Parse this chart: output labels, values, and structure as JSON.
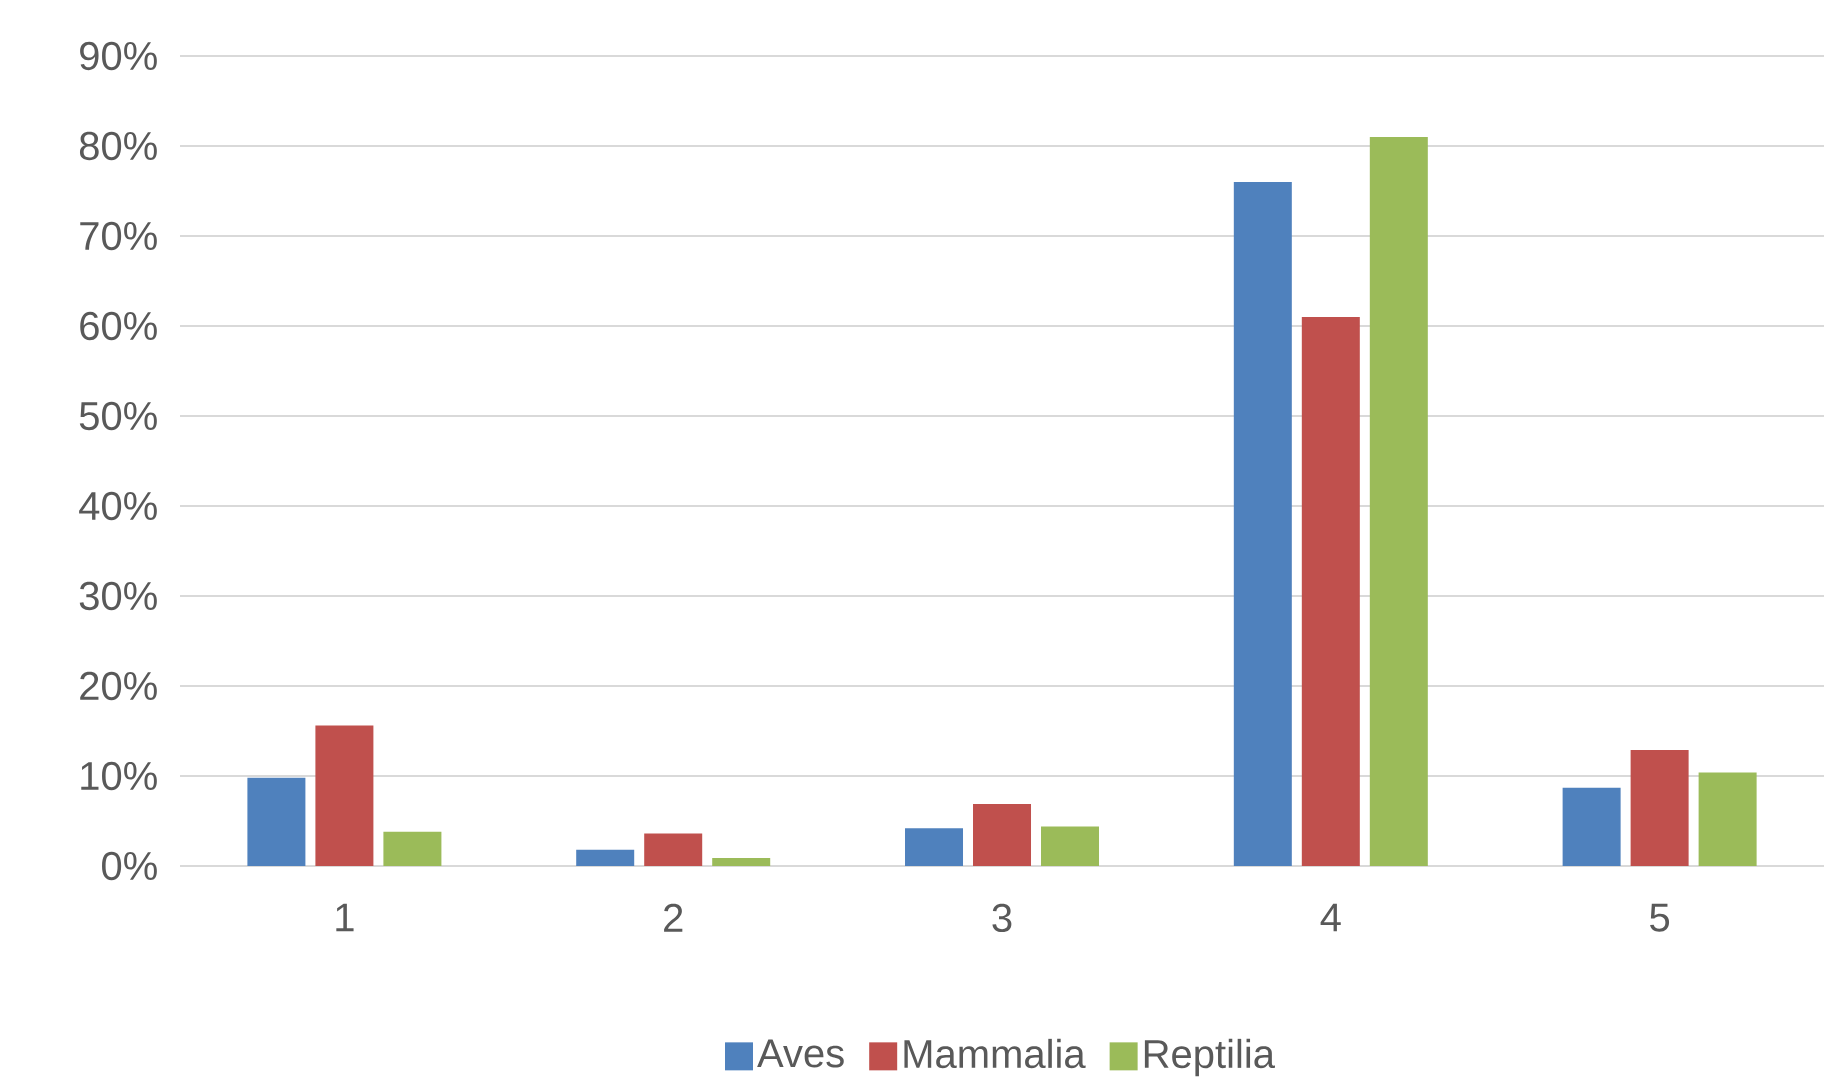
{
  "chart_data": {
    "type": "bar",
    "categories": [
      "1",
      "2",
      "3",
      "4",
      "5"
    ],
    "series": [
      {
        "name": "Aves",
        "color": "#4f81bd",
        "values": [
          9.8,
          1.8,
          4.2,
          76,
          8.7
        ]
      },
      {
        "name": "Mammalia",
        "color": "#c0504d",
        "values": [
          15.6,
          3.6,
          6.9,
          61,
          12.9
        ]
      },
      {
        "name": "Reptilia",
        "color": "#9bbb59",
        "values": [
          3.8,
          0.9,
          4.4,
          81,
          10.4
        ]
      }
    ],
    "ylim": [
      0,
      90
    ],
    "yticks": [
      {
        "value": 0,
        "label": "0%"
      },
      {
        "value": 10,
        "label": "10%"
      },
      {
        "value": 20,
        "label": "20%"
      },
      {
        "value": 30,
        "label": "30%"
      },
      {
        "value": 40,
        "label": "40%"
      },
      {
        "value": 50,
        "label": "50%"
      },
      {
        "value": 60,
        "label": "60%"
      },
      {
        "value": 70,
        "label": "70%"
      },
      {
        "value": 80,
        "label": "80%"
      },
      {
        "value": 90,
        "label": "90%"
      }
    ],
    "grid": "y",
    "legend": "bottom"
  }
}
